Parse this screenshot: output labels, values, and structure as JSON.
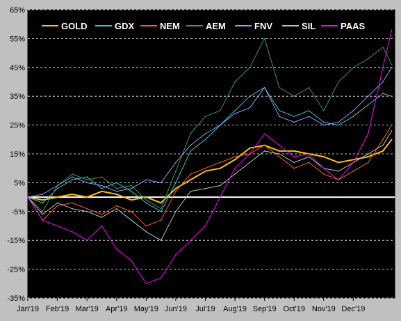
{
  "chart_data": {
    "type": "line",
    "title": "",
    "xlabel": "",
    "ylabel": "",
    "x_tick_labels": [
      "Jan'19",
      "Feb'19",
      "Mar'19",
      "Apr'19",
      "May'19",
      "Jun'19",
      "Jul'19",
      "Aug'19",
      "Sep'19",
      "Oct'19",
      "Nov'19",
      "Dec'19"
    ],
    "y_ticks": [
      65,
      55,
      45,
      35,
      25,
      15,
      5,
      -5,
      -15,
      -25,
      -35
    ],
    "y_tick_labels": [
      "65%",
      "55%",
      "45%",
      "35%",
      "25%",
      "15%",
      "5%",
      "-5%",
      "-15%",
      "-25%",
      "-35%"
    ],
    "ylim": [
      -35,
      65
    ],
    "x_unit": "month (0 = start of Jan'19)",
    "xlim": [
      0,
      12.4
    ],
    "y_unit": "% change",
    "grid": "horizontal dashed",
    "legend_placement": "top",
    "background": "#000000",
    "zero_line_color": "#ffffff",
    "series": [
      {
        "name": "GOLD",
        "color": "#ffc000",
        "x": [
          0,
          0.5,
          1,
          1.5,
          2,
          2.5,
          3,
          3.5,
          4,
          4.5,
          5,
          5.5,
          6,
          6.5,
          7,
          7.5,
          8,
          8.5,
          9,
          9.5,
          10,
          10.5,
          11,
          11.5,
          12,
          12.3
        ],
        "values": [
          0,
          -1,
          0,
          1,
          0,
          2,
          1,
          -1,
          0,
          -2,
          3,
          6,
          9,
          10,
          13,
          17,
          18,
          16,
          16,
          15,
          14,
          12,
          13,
          14,
          16,
          20
        ]
      },
      {
        "name": "GDX",
        "color": "#33cccc",
        "x": [
          0,
          0.5,
          1,
          1.5,
          2,
          2.5,
          3,
          3.5,
          4,
          4.5,
          5,
          5.5,
          6,
          6.5,
          7,
          7.5,
          8,
          8.5,
          9,
          9.5,
          10,
          10.5,
          11,
          11.5,
          12,
          12.3
        ],
        "values": [
          0,
          -2,
          3,
          6,
          7,
          3,
          5,
          2,
          -2,
          -5,
          5,
          16,
          20,
          25,
          30,
          35,
          38,
          30,
          28,
          30,
          26,
          25,
          28,
          32,
          36,
          35
        ]
      },
      {
        "name": "NEM",
        "color": "#ff6600",
        "x": [
          0,
          0.5,
          1,
          1.5,
          2,
          2.5,
          3,
          3.5,
          4,
          4.5,
          5,
          5.5,
          6,
          6.5,
          7,
          7.5,
          8,
          8.5,
          9,
          9.5,
          10,
          10.5,
          11,
          11.5,
          12,
          12.3
        ],
        "values": [
          0,
          -8,
          -3,
          -2,
          -4,
          -6,
          -3,
          -5,
          -10,
          -8,
          2,
          8,
          10,
          12,
          14,
          15,
          18,
          14,
          10,
          12,
          8,
          6,
          9,
          12,
          20,
          25
        ]
      },
      {
        "name": "AEM",
        "color": "#339966",
        "x": [
          0,
          0.5,
          1,
          1.5,
          2,
          2.5,
          3,
          3.5,
          4,
          4.5,
          5,
          5.5,
          6,
          6.5,
          7,
          7.5,
          8,
          8.5,
          9,
          9.5,
          10,
          10.5,
          11,
          11.5,
          12,
          12.3
        ],
        "values": [
          0,
          -5,
          4,
          8,
          6,
          7,
          3,
          4,
          -1,
          -4,
          9,
          22,
          28,
          30,
          40,
          45,
          55,
          38,
          35,
          38,
          30,
          40,
          45,
          48,
          52,
          46
        ]
      },
      {
        "name": "FNV",
        "color": "#9999ff",
        "x": [
          0,
          0.5,
          1,
          1.5,
          2,
          2.5,
          3,
          3.5,
          4,
          4.5,
          5,
          5.5,
          6,
          6.5,
          7,
          7.5,
          8,
          8.5,
          9,
          9.5,
          10,
          10.5,
          11,
          11.5,
          12,
          12.3
        ],
        "values": [
          0,
          1,
          4,
          7,
          5,
          4,
          2,
          3,
          6,
          5,
          12,
          18,
          22,
          25,
          29,
          31,
          38,
          28,
          26,
          28,
          25,
          26,
          30,
          35,
          40,
          45
        ]
      },
      {
        "name": "SIL",
        "color": "#c0c0c0",
        "x": [
          0,
          0.5,
          1,
          1.5,
          2,
          2.5,
          3,
          3.5,
          4,
          4.5,
          5,
          5.5,
          6,
          6.5,
          7,
          7.5,
          8,
          8.5,
          9,
          9.5,
          10,
          10.5,
          11,
          11.5,
          12,
          12.3
        ],
        "values": [
          0,
          -6,
          -2,
          -4,
          -5,
          -7,
          -4,
          -8,
          -12,
          -15,
          -5,
          2,
          3,
          4,
          8,
          12,
          16,
          15,
          12,
          14,
          10,
          9,
          12,
          15,
          18,
          23
        ]
      },
      {
        "name": "PAAS",
        "color": "#ff00ff",
        "x": [
          0,
          0.5,
          1,
          1.5,
          2,
          2.5,
          3,
          3.5,
          4,
          4.5,
          5,
          5.5,
          6,
          6.5,
          7,
          7.5,
          8,
          8.5,
          9,
          9.5,
          10,
          10.5,
          11,
          11.5,
          12,
          12.3
        ],
        "values": [
          0,
          -8,
          -10,
          -12,
          -15,
          -10,
          -18,
          -22,
          -30,
          -28,
          -20,
          -15,
          -10,
          0,
          10,
          15,
          22,
          18,
          14,
          15,
          10,
          6,
          12,
          22,
          45,
          58
        ]
      }
    ]
  }
}
